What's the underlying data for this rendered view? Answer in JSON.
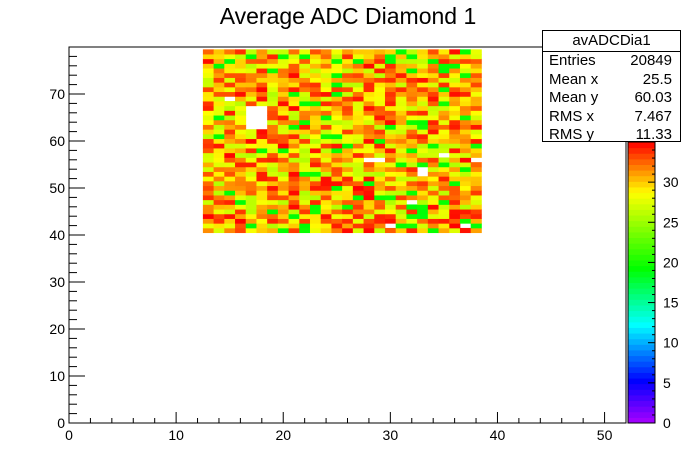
{
  "chart_data": {
    "type": "heatmap",
    "title": "Average ADC Diamond 1",
    "xlabel": "",
    "ylabel": "",
    "xlim": [
      0,
      52
    ],
    "ylim": [
      0,
      80
    ],
    "x_ticks": [
      0,
      10,
      20,
      30,
      40,
      50
    ],
    "y_ticks": [
      0,
      10,
      20,
      30,
      40,
      50,
      60,
      70
    ],
    "z_range": [
      0,
      35
    ],
    "z_ticks": [
      0,
      5,
      10,
      15,
      20,
      25,
      30
    ],
    "filled_region": {
      "x": [
        12.5,
        38.5
      ],
      "y": [
        40.5,
        79.5
      ]
    },
    "empty_bins": [
      [
        17,
        67
      ],
      [
        18,
        67
      ],
      [
        17,
        66
      ],
      [
        18,
        66
      ],
      [
        17,
        65
      ],
      [
        18,
        65
      ],
      [
        17,
        64
      ],
      [
        18,
        64
      ],
      [
        17,
        63
      ],
      [
        18,
        63
      ],
      [
        15,
        69
      ],
      [
        28,
        56
      ],
      [
        29,
        56
      ],
      [
        33,
        54
      ],
      [
        33,
        53
      ],
      [
        35,
        57
      ],
      [
        40,
        57
      ],
      [
        38,
        56
      ],
      [
        37,
        42
      ],
      [
        30,
        42
      ],
      [
        32,
        47
      ]
    ],
    "palette": "rainbow (violet-blue-cyan-green-yellow-red)",
    "stats": {
      "name": "avADCDia1",
      "rows": [
        {
          "label": "Entries",
          "value": "20849"
        },
        {
          "label": "Mean x",
          "value": "25.5"
        },
        {
          "label": "Mean y",
          "value": "60.03"
        },
        {
          "label": "RMS x",
          "value": "7.467"
        },
        {
          "label": "RMS y",
          "value": "11.33"
        }
      ]
    }
  }
}
